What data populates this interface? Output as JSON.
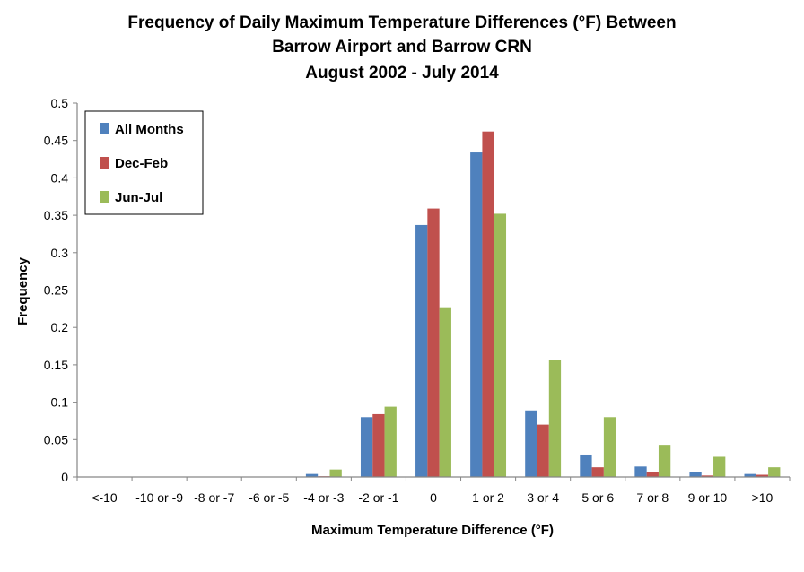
{
  "chart_data": {
    "type": "bar",
    "title_lines": [
      "Frequency of Daily Maximum Temperature Differences (°F) Between",
      "Barrow Airport and Barrow CRN",
      "August 2002 - July 2014"
    ],
    "xlabel": "Maximum Temperature Difference (°F)",
    "ylabel": "Frequency",
    "ylim": [
      0,
      0.5
    ],
    "yticks": [
      "0",
      "0.05",
      "0.1",
      "0.15",
      "0.2",
      "0.25",
      "0.3",
      "0.35",
      "0.4",
      "0.45",
      "0.5"
    ],
    "ytick_values": [
      0,
      0.05,
      0.1,
      0.15,
      0.2,
      0.25,
      0.3,
      0.35,
      0.4,
      0.45,
      0.5
    ],
    "categories": [
      "<-10",
      "-10 or -9",
      "-8 or -7",
      "-6 or -5",
      "-4 or -3",
      "-2 or -1",
      "0",
      "1 or 2",
      "3 or 4",
      "5 or 6",
      "7 or 8",
      "9 or 10",
      ">10"
    ],
    "series": [
      {
        "name": "All Months",
        "color": "#4F81BD",
        "values": [
          0,
          0,
          0,
          0,
          0.004,
          0.08,
          0.337,
          0.434,
          0.089,
          0.03,
          0.014,
          0.007,
          0.004
        ]
      },
      {
        "name": "Dec-Feb",
        "color": "#C0504D",
        "values": [
          0,
          0,
          0,
          0,
          0.001,
          0.084,
          0.359,
          0.462,
          0.07,
          0.013,
          0.007,
          0.002,
          0.003
        ]
      },
      {
        "name": "Jun-Jul",
        "color": "#9BBB59",
        "values": [
          0,
          0,
          0,
          0,
          0.01,
          0.094,
          0.227,
          0.352,
          0.157,
          0.08,
          0.043,
          0.027,
          0.013
        ]
      }
    ],
    "grid": false,
    "legend_position": "top-left"
  }
}
